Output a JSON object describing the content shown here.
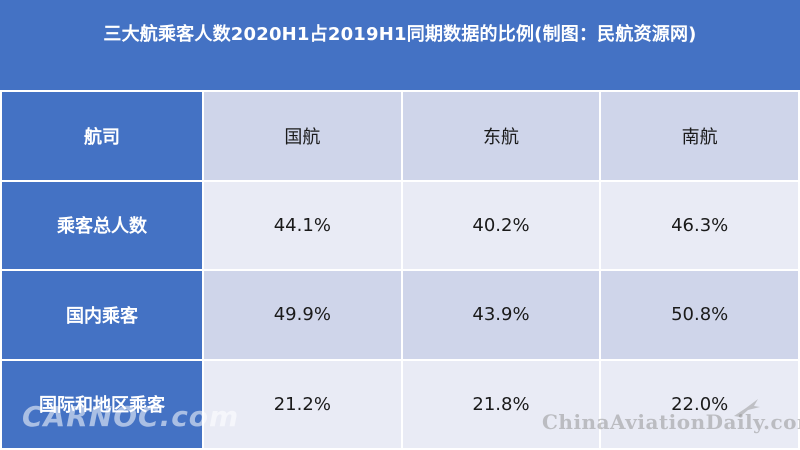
{
  "title": "三大航乘客人数2020H1占2019H1同期数据的比例(制图：民航资源网)",
  "table": {
    "header_label": "航司",
    "columns": [
      "国航",
      "东航",
      "南航"
    ],
    "rows": [
      {
        "label": "乘客总人数",
        "values": [
          "44.1%",
          "40.2%",
          "46.3%"
        ]
      },
      {
        "label": "国内乘客",
        "values": [
          "49.9%",
          "43.9%",
          "50.8%"
        ]
      },
      {
        "label": "国际和地区乘客",
        "values": [
          "21.2%",
          "21.8%",
          "22.0%"
        ]
      }
    ]
  },
  "watermark": {
    "left_text": "CARNOC.com",
    "right_text": "ChinaAviationDaily.com"
  },
  "colors": {
    "header_blue": "#4472c4",
    "band_dark": "#cfd5ea",
    "band_light": "#e9ebf5"
  }
}
